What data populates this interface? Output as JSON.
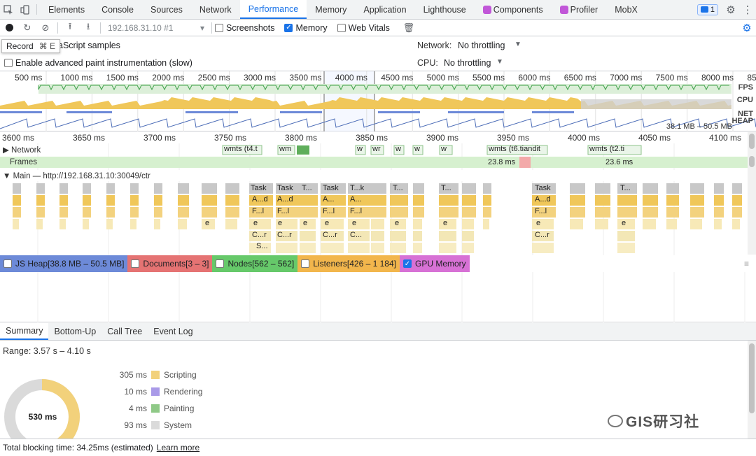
{
  "tabs": [
    "Elements",
    "Console",
    "Sources",
    "Network",
    "Performance",
    "Memory",
    "Application",
    "Lighthouse",
    "Components",
    "Profiler",
    "MobX"
  ],
  "active_tab": "Performance",
  "issues_count": "1",
  "toolbar": {
    "target": "192.168.31.10 #1",
    "screenshots_label": "Screenshots",
    "memory_label": "Memory",
    "webvitals_label": "Web Vitals"
  },
  "tooltip": {
    "label": "Record",
    "shortcut": "⌘ E"
  },
  "settings": {
    "js_samples": "aScript samples",
    "paint": "Enable advanced paint instrumentation (slow)",
    "network_label": "Network:",
    "network_value": "No throttling",
    "cpu_label": "CPU:",
    "cpu_value": "No throttling"
  },
  "overview": {
    "ticks": [
      "500 ms",
      "1000 ms",
      "1500 ms",
      "2000 ms",
      "2500 ms",
      "3000 ms",
      "3500 ms",
      "4000 ms",
      "4500 ms",
      "5000 ms",
      "5500 ms",
      "6000 ms",
      "6500 ms",
      "7000 ms",
      "7500 ms",
      "8000 ms",
      "850"
    ],
    "labels": {
      "fps": "FPS",
      "cpu": "CPU",
      "net": "NET",
      "heap": "HEAP"
    },
    "heap_range": "38.1 MB – 50.5 MB"
  },
  "detail_ticks": [
    "3600 ms",
    "3650 ms",
    "3700 ms",
    "3750 ms",
    "3800 ms",
    "3850 ms",
    "3900 ms",
    "3950 ms",
    "4000 ms",
    "4050 ms",
    "4100 ms"
  ],
  "tracks": {
    "network": "Network",
    "frames": "Frames",
    "main": "Main — http://192.168.31.10:30049/ctr",
    "frame_times": [
      "23.8 ms",
      "23.6 ms"
    ],
    "net_items": [
      "wmts (t4.t",
      "wm",
      "w",
      "wr",
      "w",
      "w",
      "w",
      "wmts (t6.tiandit",
      "wmts (t2.ti"
    ]
  },
  "flame_labels": {
    "task": [
      "Task",
      "Task",
      "T...",
      "Task",
      "T...k",
      "T...",
      "T...",
      "Task",
      "T..."
    ],
    "l2": [
      "A...d",
      "A...d",
      "A...",
      "A...",
      "A...d"
    ],
    "l3": [
      "F...l",
      "F...l",
      "F...l",
      "F...l",
      "F...l"
    ],
    "l4": [
      "e",
      "e",
      "e",
      "e",
      "e",
      "e",
      "e",
      "e",
      "e",
      "e"
    ],
    "l5": [
      "C...r",
      "C...r",
      "C...r",
      "C...",
      "C...r"
    ],
    "l6": [
      "S..."
    ]
  },
  "counters": [
    {
      "label": "JS Heap[38.8 MB – 50.5 MB]",
      "checked": false
    },
    {
      "label": "Documents[3 – 3]",
      "checked": false
    },
    {
      "label": "Nodes[562 – 562]",
      "checked": false
    },
    {
      "label": "Listeners[426 – 1 184]",
      "checked": false
    },
    {
      "label": "GPU Memory",
      "checked": true
    }
  ],
  "bottom_tabs": [
    "Summary",
    "Bottom-Up",
    "Call Tree",
    "Event Log"
  ],
  "summary": {
    "range": "Range: 3.57 s – 4.10 s",
    "total": "530 ms",
    "rows": [
      {
        "value": "305 ms",
        "label": "Scripting",
        "color": "#f2d17b"
      },
      {
        "value": "10 ms",
        "label": "Rendering",
        "color": "#a99ae8"
      },
      {
        "value": "4 ms",
        "label": "Painting",
        "color": "#8fc987"
      },
      {
        "value": "93 ms",
        "label": "System",
        "color": "#dadada"
      }
    ]
  },
  "footer": {
    "text": "Total blocking time: 34.25ms (estimated)",
    "link": "Learn more"
  },
  "watermark": "GIS研习社"
}
